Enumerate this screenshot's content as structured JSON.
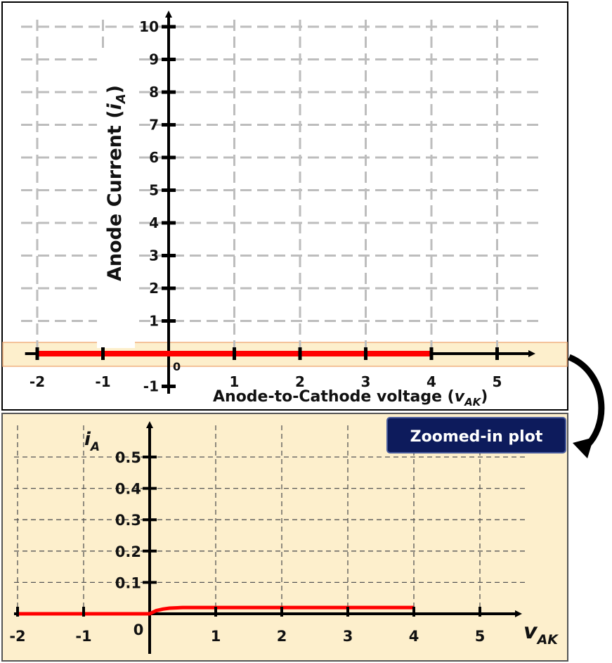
{
  "chart_data": [
    {
      "type": "line",
      "xlabel": "Anode-to-Cathode voltage (",
      "xlabel_var": "v",
      "xlabel_sub": "AK",
      "xlabel_close": ")",
      "ylabel": "Anode Current (",
      "ylabel_var": "i",
      "ylabel_sub": "A",
      "ylabel_close": ")",
      "xlim": [
        -2.1,
        5.5
      ],
      "ylim": [
        -1,
        10.5
      ],
      "x_ticks": [
        -2,
        -1,
        1,
        2,
        3,
        4,
        5
      ],
      "x_tick_labels": [
        "-2",
        "-1",
        "1",
        "2",
        "3",
        "4",
        "5"
      ],
      "y_ticks": [
        1,
        2,
        3,
        4,
        5,
        6,
        7,
        8,
        9,
        10,
        -1
      ],
      "y_tick_labels": [
        "1",
        "2",
        "3",
        "4",
        "5",
        "6",
        "7",
        "8",
        "9",
        "10",
        "-1"
      ],
      "origin_label": "0",
      "grid": true,
      "highlight_band": [
        -0.3,
        0.3
      ],
      "series": [
        {
          "x": [
            -2,
            0,
            4
          ],
          "y": [
            0,
            0,
            0
          ],
          "color": "#ff0000"
        }
      ]
    },
    {
      "type": "line",
      "title": "Zoomed-in plot",
      "xlabel_var": "v",
      "xlabel_sub": "AK",
      "ylabel_var": "i",
      "ylabel_sub": "A",
      "xlim": [
        -2.1,
        5.6
      ],
      "ylim": [
        0,
        0.58
      ],
      "x_ticks": [
        -2,
        -1,
        1,
        2,
        3,
        4,
        5
      ],
      "x_tick_labels": [
        "-2",
        "-1",
        "1",
        "2",
        "3",
        "4",
        "5"
      ],
      "y_ticks": [
        0.1,
        0.2,
        0.3,
        0.4,
        0.5
      ],
      "y_tick_labels": [
        "0.1",
        "0.2",
        "0.3",
        "0.4",
        "0.5"
      ],
      "origin_label": "0",
      "grid": true,
      "series": [
        {
          "x": [
            -2,
            -1,
            0,
            0.05,
            0.1,
            0.2,
            0.3,
            0.5,
            1,
            2,
            3,
            4
          ],
          "y": [
            0,
            0,
            0,
            0.005,
            0.01,
            0.015,
            0.018,
            0.02,
            0.02,
            0.02,
            0.02,
            0.02
          ],
          "color": "#ff0000"
        }
      ]
    }
  ],
  "colors": {
    "zoom_background": "#fdefcc",
    "band_border": "#f0b080",
    "title_box": "#0d1b5c",
    "curve": "#ff0000"
  }
}
